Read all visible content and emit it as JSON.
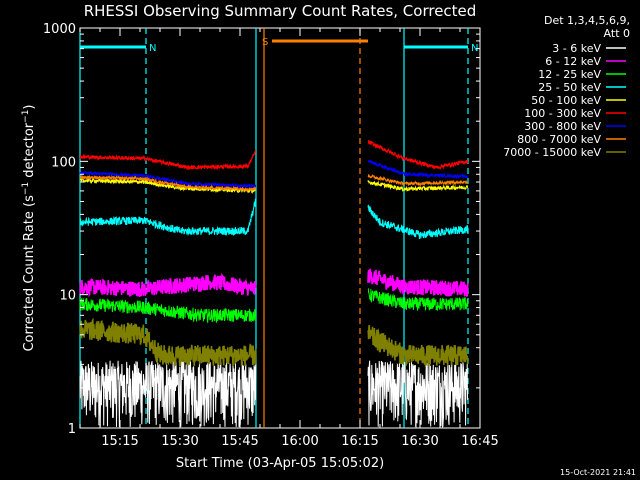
{
  "chart_data": {
    "type": "line",
    "title": "RHESSI Observing Summary Count Rates, Corrected",
    "xlabel": "Start Time (03-Apr-05 15:05:02)",
    "ylabel": "Corrected Count Rate (s⁻¹ detector⁻¹)",
    "ylabel_parts": {
      "pre": "Corrected Count Rate (s",
      "sup1": "−1",
      "mid": " detector",
      "sup2": "−1",
      "post": ")"
    },
    "y_scale": "log",
    "ylim": [
      1,
      1000
    ],
    "y_ticks": [
      "1",
      "10",
      "100",
      "1000"
    ],
    "xlim": [
      "15:05",
      "16:45"
    ],
    "x_ticks": [
      "15:15",
      "15:30",
      "15:45",
      "16:00",
      "16:15",
      "16:30",
      "16:45"
    ],
    "footer_date": "15-Oct-2021 21:41",
    "legend_header": [
      "Det 1,3,4,5,6,9,",
      "Att 0"
    ],
    "grid": false,
    "legend_position": "right",
    "flags": [
      {
        "letter": "N",
        "color": "#00ffff",
        "bands": [
          [
            "15:05",
            "15:21.5"
          ],
          [
            "16:26",
            "16:42"
          ]
        ]
      },
      {
        "letter": "S",
        "color": "#ff8000",
        "bands": [
          [
            "15:53",
            "16:17"
          ]
        ]
      }
    ],
    "vlines": [
      {
        "time": "15:05",
        "color": "#00ffff",
        "style": "solid"
      },
      {
        "time": "15:21.5",
        "color": "#00ffff",
        "style": "dashed"
      },
      {
        "time": "15:49",
        "color": "#00ffff",
        "style": "solid"
      },
      {
        "time": "15:51",
        "color": "#ff8000",
        "style": "solid"
      },
      {
        "time": "16:15",
        "color": "#ff8000",
        "style": "dashed"
      },
      {
        "time": "16:26",
        "color": "#00ffff",
        "style": "solid"
      },
      {
        "time": "16:42",
        "color": "#00ffff",
        "style": "dashed"
      }
    ],
    "series": [
      {
        "name": "3 - 6 keV",
        "color": "#ffffff",
        "noise": 0.9,
        "seg1": [
          [
            "15:05",
            1.8
          ],
          [
            "15:49",
            1.8
          ]
        ],
        "seg2": [
          [
            "16:17",
            9
          ],
          [
            "16:21",
            4
          ],
          [
            "16:26",
            2.5
          ],
          [
            "16:42",
            2
          ]
        ]
      },
      {
        "name": "6 - 12 keV",
        "color": "#ff00ff",
        "noise": 0.06,
        "seg1": [
          [
            "15:05",
            11.5
          ],
          [
            "15:21",
            11
          ],
          [
            "15:38",
            12.5
          ],
          [
            "15:49",
            11
          ]
        ],
        "seg2": [
          [
            "16:17",
            14
          ],
          [
            "16:26",
            11.5
          ],
          [
            "16:42",
            11
          ]
        ]
      },
      {
        "name": "12 - 25 keV",
        "color": "#00ff00",
        "noise": 0.05,
        "seg1": [
          [
            "15:05",
            8.5
          ],
          [
            "15:21",
            8
          ],
          [
            "15:35",
            7
          ],
          [
            "15:49",
            7
          ]
        ],
        "seg2": [
          [
            "16:17",
            10
          ],
          [
            "16:26",
            8.5
          ],
          [
            "16:42",
            8.5
          ]
        ]
      },
      {
        "name": "25 - 50 keV",
        "color": "#00ffff",
        "noise": 0.03,
        "seg1": [
          [
            "15:05",
            35
          ],
          [
            "15:21",
            36
          ],
          [
            "15:30",
            30
          ],
          [
            "15:47",
            30
          ],
          [
            "15:49",
            52
          ]
        ],
        "seg2": [
          [
            "16:17",
            45
          ],
          [
            "16:20",
            35
          ],
          [
            "16:30",
            28
          ],
          [
            "16:42",
            31
          ]
        ]
      },
      {
        "name": "50 - 100 keV",
        "color": "#ffff00",
        "noise": 0.015,
        "seg1": [
          [
            "15:05",
            72
          ],
          [
            "15:21",
            70
          ],
          [
            "15:30",
            63
          ],
          [
            "15:49",
            60
          ]
        ],
        "seg2": [
          [
            "16:17",
            70
          ],
          [
            "16:26",
            62
          ],
          [
            "16:42",
            64
          ]
        ]
      },
      {
        "name": "100 - 300 keV",
        "color": "#ff0000",
        "noise": 0.015,
        "seg1": [
          [
            "15:05",
            108
          ],
          [
            "15:21",
            105
          ],
          [
            "15:32",
            90
          ],
          [
            "15:47",
            92
          ],
          [
            "15:49",
            120
          ]
        ],
        "seg2": [
          [
            "16:17",
            140
          ],
          [
            "16:26",
            105
          ],
          [
            "16:34",
            90
          ],
          [
            "16:42",
            100
          ]
        ]
      },
      {
        "name": "300 - 800 keV",
        "color": "#0000ff",
        "noise": 0.012,
        "seg1": [
          [
            "15:05",
            82
          ],
          [
            "15:21",
            78
          ],
          [
            "15:32",
            68
          ],
          [
            "15:49",
            65
          ]
        ],
        "seg2": [
          [
            "16:17",
            100
          ],
          [
            "16:26",
            80
          ],
          [
            "16:42",
            77
          ]
        ]
      },
      {
        "name": "800 - 7000 keV",
        "color": "#ff8000",
        "noise": 0.012,
        "seg1": [
          [
            "15:05",
            76
          ],
          [
            "15:21",
            74
          ],
          [
            "15:32",
            64
          ],
          [
            "15:49",
            62
          ]
        ],
        "seg2": [
          [
            "16:17",
            78
          ],
          [
            "16:26",
            68
          ],
          [
            "16:42",
            70
          ]
        ]
      },
      {
        "name": "7000 - 15000 keV",
        "color": "#808000",
        "noise": 0.08,
        "seg1": [
          [
            "15:05",
            5.5
          ],
          [
            "15:21",
            5
          ],
          [
            "15:25",
            3.5
          ],
          [
            "15:49",
            3.5
          ]
        ],
        "seg2": [
          [
            "16:17",
            5
          ],
          [
            "16:26",
            3.5
          ],
          [
            "16:42",
            3.5
          ]
        ]
      }
    ]
  }
}
